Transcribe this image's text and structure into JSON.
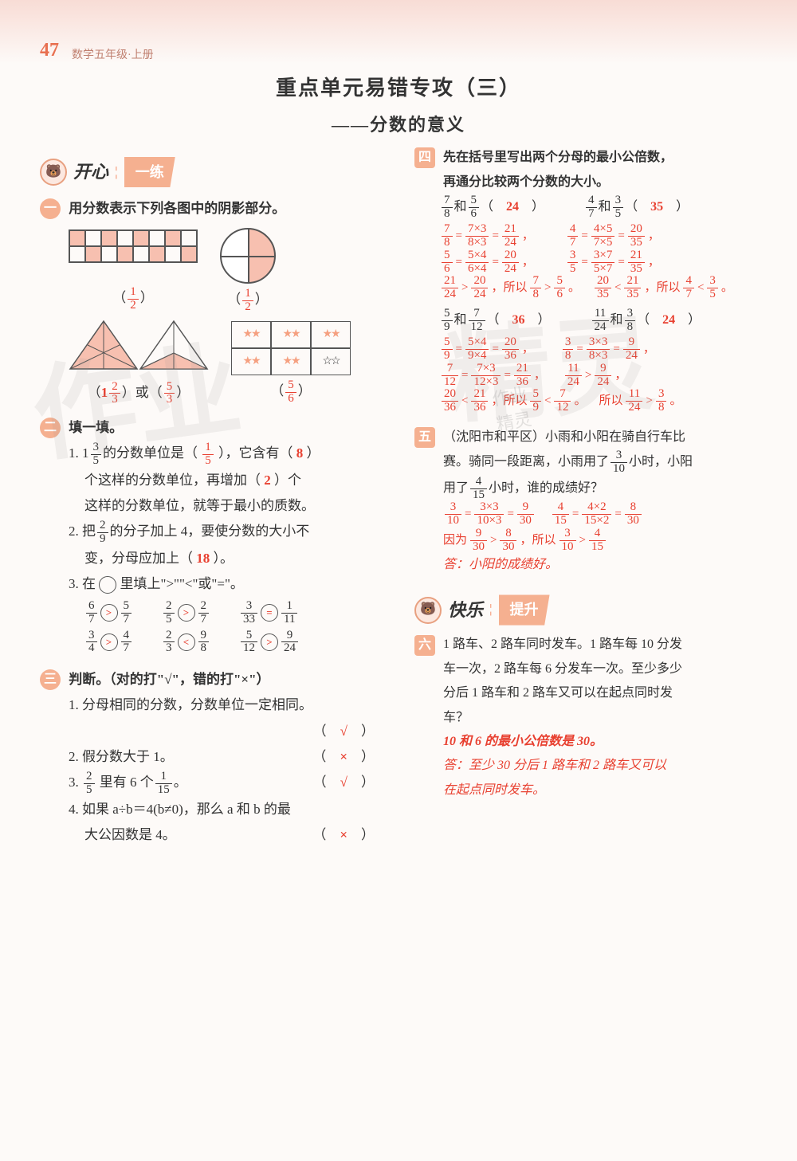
{
  "page": {
    "number": "47",
    "book": "数学五年级·上册",
    "title": "重点单元易错专攻（三）",
    "subtitle": "——分数的意义"
  },
  "sections": {
    "kaixin": {
      "label": "开心",
      "tag": "一练"
    },
    "kuaile": {
      "label": "快乐",
      "tag": "提升"
    }
  },
  "left": {
    "q1": {
      "badge": "一",
      "text": "用分数表示下列各图中的阴影部分。",
      "ans1_n": "1",
      "ans1_d": "2",
      "ans2_n": "1",
      "ans2_d": "2",
      "ans3a": "1",
      "ans3a_n": "2",
      "ans3a_d": "3",
      "ans3b_n": "5",
      "ans3b_d": "3",
      "ans4_n": "5",
      "ans4_d": "6"
    },
    "q2": {
      "badge": "二",
      "text": "填一填。",
      "item1_a": "1. 1",
      "item1_frac_n": "3",
      "item1_frac_d": "5",
      "item1_b": "的分数单位是（",
      "item1_ans1_n": "1",
      "item1_ans1_d": "5",
      "item1_c": "），它含有（",
      "item1_ans2": "8",
      "item1_d": "）",
      "item1_e": "个这样的分数单位，再增加（",
      "item1_ans3": "2",
      "item1_f": "）个",
      "item1_g": "这样的分数单位，就等于最小的质数。",
      "item2_a": "2. 把",
      "item2_frac_n": "2",
      "item2_frac_d": "9",
      "item2_b": "的分子加上 4，要使分数的大小不",
      "item2_c": "变，分母应加上（",
      "item2_ans": "18",
      "item2_d": "）。",
      "item3_a": "3. 在",
      "item3_b": "里填上\">\"\"<\"或\"=\"。",
      "comps": [
        [
          {
            "ln": "6",
            "ld": "7",
            "op": ">",
            "rn": "5",
            "rd": "7"
          },
          {
            "ln": "2",
            "ld": "5",
            "op": ">",
            "rn": "2",
            "rd": "7"
          },
          {
            "ln": "3",
            "ld": "33",
            "op": "=",
            "rn": "1",
            "rd": "11"
          }
        ],
        [
          {
            "ln": "3",
            "ld": "4",
            "op": ">",
            "rn": "4",
            "rd": "7"
          },
          {
            "ln": "2",
            "ld": "3",
            "op": "<",
            "rn": "9",
            "rd": "8"
          },
          {
            "ln": "5",
            "ld": "12",
            "op": ">",
            "rn": "9",
            "rd": "24"
          }
        ]
      ]
    },
    "q3": {
      "badge": "三",
      "text": "判断。（对的打\"√\"，错的打\"×\"）",
      "item1": "1. 分母相同的分数，分数单位一定相同。",
      "ans1": "√",
      "item2": "2. 假分数大于 1。",
      "ans2": "×",
      "item3_a": "3. ",
      "item3_ln": "2",
      "item3_ld": "5",
      "item3_b": " 里有 6 个",
      "item3_rn": "1",
      "item3_rd": "15",
      "item3_c": "。",
      "ans3": "√",
      "item4_a": "4. 如果 a÷b＝4(b≠0)，那么 a 和 b 的最",
      "item4_b": "大公因数是 4。",
      "ans4": "×"
    }
  },
  "right": {
    "q4": {
      "badge": "四",
      "text1": "先在括号里写出两个分母的最小公倍数，",
      "text2": "再通分比较两个分数的大小。",
      "pairs": [
        {
          "an": "7",
          "ad": "8",
          "bn": "5",
          "bd": "6",
          "lcm": "24"
        },
        {
          "an": "4",
          "ad": "7",
          "bn": "3",
          "bd": "5",
          "lcm": "35"
        }
      ],
      "work_row1_left": "7/8 = 7×3/8×3 = 21/24，",
      "work_row1_right": "4/7 = 4×5/7×5 = 20/35，",
      "work_row2_left": "5/6 = 5×4/6×4 = 20/24，",
      "work_row2_right": "3/5 = 3×7/5×7 = 21/35，",
      "work_row3_left": "21/24 > 20/24，所以 7/8 > 5/6。",
      "work_row3_right": "20/35 < 21/35，所以 4/7 < 3/5。",
      "pairs2": [
        {
          "an": "5",
          "ad": "9",
          "bn": "7",
          "bd": "12",
          "lcm": "36"
        },
        {
          "an": "11",
          "ad": "24",
          "bn": "3",
          "bd": "8",
          "lcm": "24"
        }
      ],
      "work2_row1_left": "5/9 = 5×4/9×4 = 20/36，",
      "work2_row1_right": "3/8 = 3×3/8×3 = 9/24，",
      "work2_row2_left": "7/12 = 7×3/12×3 = 21/36，",
      "work2_row2_right": "11/24 > 9/24，",
      "work2_row3_left": "20/36 < 21/36，所以 5/9 < 7/12。",
      "work2_row3_right": "所以 11/24 > 3/8。"
    },
    "q5": {
      "badge": "五",
      "text1": "（沈阳市和平区）小雨和小阳在骑自行车比",
      "text2_a": "赛。骑同一段距离，小雨用了",
      "f1_n": "3",
      "f1_d": "10",
      "text2_b": "小时，小阳",
      "text3_a": "用了",
      "f2_n": "4",
      "f2_d": "15",
      "text3_b": "小时，谁的成绩好？",
      "work1": "3/10 = 3×3/10×3 = 9/30　4/15 = 4×2/15×2 = 8/30",
      "work2": "因为 9/30 > 8/30，所以 3/10 > 4/15",
      "answer": "答：小阳的成绩好。"
    },
    "q6": {
      "badge": "六",
      "text1": "1 路车、2 路车同时发车。1 路车每 10 分发",
      "text2": "车一次，2 路车每 6 分发车一次。至少多少",
      "text3": "分后 1 路车和 2 路车又可以在起点同时发",
      "text4": "车？",
      "work1": "10 和 6 的最小公倍数是 30。",
      "answer1": "答：至少 30 分后 1 路车和 2 路车又可以",
      "answer2": "在起点同时发车。"
    }
  }
}
